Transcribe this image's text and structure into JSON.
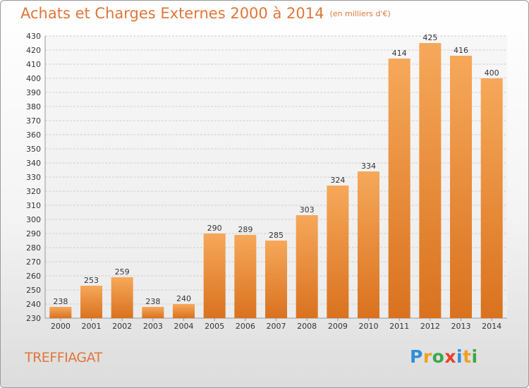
{
  "title": {
    "main": "Achats et Charges Externes 2000 à 2014",
    "unit": "(en milliers d'€)"
  },
  "commune": "TREFFIAGAT",
  "logo": {
    "text": "Proxiti",
    "letters": [
      {
        "ch": "P",
        "color": "#2f8fd8"
      },
      {
        "ch": "r",
        "color": "#f0a020"
      },
      {
        "ch": "o",
        "color": "#3aa84a"
      },
      {
        "ch": "x",
        "color": "#e8402a"
      },
      {
        "ch": "i",
        "color": "#2f8fd8"
      },
      {
        "ch": "t",
        "color": "#f0a020"
      },
      {
        "ch": "i",
        "color": "#3aa84a"
      }
    ]
  },
  "colors": {
    "title": "#e0763a",
    "bar_top": "#f6a85a",
    "bar_bottom": "#d9721f",
    "grid": "#cfcfcf",
    "axis_text": "#333333"
  },
  "chart_data": {
    "type": "bar",
    "categories": [
      "2000",
      "2001",
      "2002",
      "2003",
      "2004",
      "2005",
      "2006",
      "2007",
      "2008",
      "2009",
      "2010",
      "2011",
      "2012",
      "2013",
      "2014"
    ],
    "values": [
      238,
      253,
      259,
      238,
      240,
      290,
      289,
      285,
      303,
      324,
      334,
      414,
      425,
      416,
      400
    ],
    "ylim": [
      230,
      430
    ],
    "ytick_step": 10,
    "grid": true,
    "data_labels": true
  }
}
